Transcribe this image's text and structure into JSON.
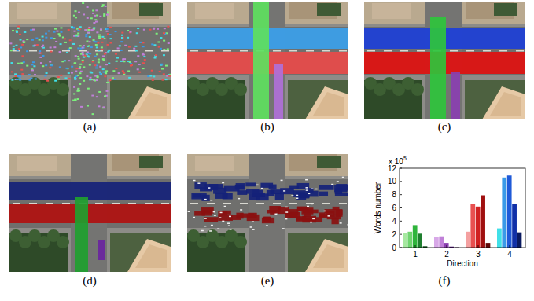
{
  "panels": [
    "(a)",
    "(b)",
    "(c)",
    "(d)",
    "(e)",
    "(f)"
  ],
  "chart_data": {
    "type": "bar",
    "x_label": "Direction",
    "y_label": "Words number",
    "y_multiplier": {
      "base": "x 10",
      "exponent": "5"
    },
    "categories": [
      "1",
      "2",
      "3",
      "4"
    ],
    "series": [
      {
        "colors": [
          "#a6e8a0",
          "#d8a8e8",
          "#f4a0a0",
          "#40e0e8"
        ],
        "values": [
          2.2,
          1.6,
          2.4,
          2.9
        ]
      },
      {
        "colors": [
          "#6fd46f",
          "#c080d8",
          "#e85050",
          "#3a9ae8"
        ],
        "values": [
          2.4,
          1.7,
          6.6,
          10.6
        ]
      },
      {
        "colors": [
          "#2fb43c",
          "#8a3fb0",
          "#d02020",
          "#1f5ad8"
        ],
        "values": [
          3.4,
          0.7,
          6.2,
          10.9
        ]
      },
      {
        "colors": [
          "#1f7f2f",
          "#4a1470",
          "#a01010",
          "#1030a8"
        ],
        "values": [
          2.1,
          0.15,
          7.9,
          6.6
        ]
      },
      {
        "colors": [
          "#0b4a16",
          "#2a0a40",
          "#600808",
          "#0a1a60"
        ],
        "values": [
          0.2,
          0.05,
          0.7,
          2.3
        ]
      }
    ],
    "ylim": [
      0,
      12
    ],
    "yticks": [
      0,
      2,
      4,
      6,
      8,
      10,
      12
    ],
    "grid": false
  }
}
